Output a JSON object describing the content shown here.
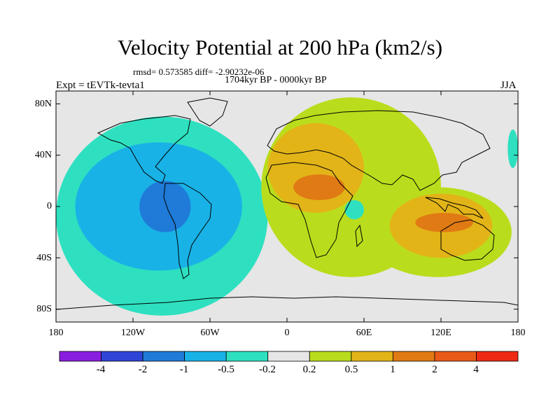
{
  "chart_data": {
    "type": "heatmap",
    "title": "Velocity Potential at 200 hPa (km2/s)",
    "stats_line": "rmsd= 0.573585  diff= -2.90232e-06",
    "period": "1704kyr BP - 0000kyr BP",
    "experiment": "Expt = tEVTk-tevta1",
    "season": "JJA",
    "x_range": [
      -180,
      180
    ],
    "y_range": [
      -90,
      90
    ],
    "x_ticks": [
      {
        "value": -180,
        "label": "180"
      },
      {
        "value": -120,
        "label": "120W"
      },
      {
        "value": -60,
        "label": "60W"
      },
      {
        "value": 0,
        "label": "0"
      },
      {
        "value": 60,
        "label": "60E"
      },
      {
        "value": 120,
        "label": "120E"
      },
      {
        "value": 180,
        "label": "180"
      }
    ],
    "y_ticks": [
      {
        "value": 80,
        "label": "80N"
      },
      {
        "value": 40,
        "label": "40N"
      },
      {
        "value": 0,
        "label": "0"
      },
      {
        "value": -40,
        "label": "40S"
      },
      {
        "value": -80,
        "label": "80S"
      }
    ],
    "levels": [
      {
        "value": -4,
        "label": "-4"
      },
      {
        "value": -2,
        "label": "-2"
      },
      {
        "value": -1,
        "label": "-1"
      },
      {
        "value": -0.5,
        "label": "-0.5"
      },
      {
        "value": -0.2,
        "label": "-0.2"
      },
      {
        "value": 0.2,
        "label": "0.2"
      },
      {
        "value": 0.5,
        "label": "0.5"
      },
      {
        "value": 1,
        "label": "1"
      },
      {
        "value": 2,
        "label": "2"
      },
      {
        "value": 4,
        "label": "4"
      }
    ],
    "colors": [
      "#8a1ee0",
      "#2f45d6",
      "#1f7ad8",
      "#19b2e6",
      "#2ee0c0",
      "#e6e6e6",
      "#b9dd1c",
      "#e2b418",
      "#e07a14",
      "#e85a18",
      "#ee2a14"
    ],
    "regions": [
      {
        "level": -0.2,
        "sign": -1,
        "lon": [
          -180,
          -15
        ],
        "lat": [
          -85,
          70
        ]
      },
      {
        "level": -0.5,
        "sign": -1,
        "lon": [
          -165,
          -35
        ],
        "lat": [
          -50,
          50
        ]
      },
      {
        "level": -1,
        "sign": -1,
        "lon": [
          -115,
          -75
        ],
        "lat": [
          -20,
          20
        ]
      },
      {
        "level": 0.2,
        "sign": 1,
        "lon": [
          -20,
          120
        ],
        "lat": [
          -55,
          85
        ]
      },
      {
        "level": 0.5,
        "sign": 1,
        "lon": [
          -15,
          60
        ],
        "lat": [
          -5,
          65
        ]
      },
      {
        "level": 1,
        "sign": 1,
        "lon": [
          5,
          45
        ],
        "lat": [
          5,
          25
        ]
      },
      {
        "level": 0.2,
        "sign": 1,
        "lon": [
          60,
          175
        ],
        "lat": [
          -55,
          15
        ]
      },
      {
        "level": 0.5,
        "sign": 1,
        "lon": [
          80,
          160
        ],
        "lat": [
          -40,
          10
        ]
      },
      {
        "level": 1,
        "sign": 1,
        "lon": [
          100,
          145
        ],
        "lat": [
          -20,
          -5
        ]
      },
      {
        "level": -0.2,
        "sign": -1,
        "lon": [
          45,
          60
        ],
        "lat": [
          -10,
          5
        ]
      },
      {
        "level": -0.2,
        "sign": -1,
        "lon": [
          172,
          180
        ],
        "lat": [
          30,
          60
        ]
      }
    ]
  }
}
